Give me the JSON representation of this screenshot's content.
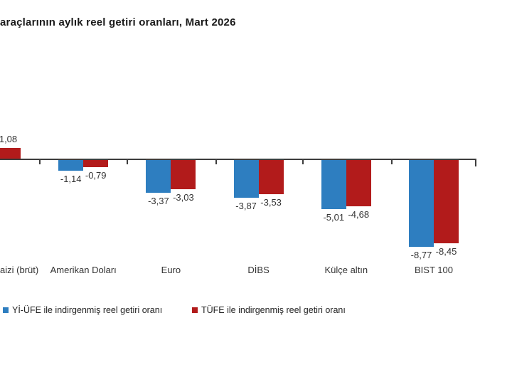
{
  "title": "araçlarının aylık reel getiri oranları, Mart 2026",
  "colors": {
    "series_blue": "#2E7EC0",
    "series_red": "#B21B1B",
    "axis": "#3d3d3d",
    "text": "#333333"
  },
  "chart_data": {
    "type": "bar",
    "title": "araçlarının aylık reel getiri oranları, Mart 2026",
    "categories": [
      "aizi (brüt)",
      "Amerikan Doları",
      "Euro",
      "DİBS",
      "Külçe altın",
      "BIST 100"
    ],
    "series": [
      {
        "name": "Yİ-ÜFE ile indirgenmiş reel getiri oranı",
        "color": "#2E7EC0",
        "values": [
          null,
          -1.14,
          -3.37,
          -3.87,
          -5.01,
          -8.77
        ]
      },
      {
        "name": "TÜFE ile indirgenmiş reel getiri oranı",
        "color": "#B21B1B",
        "values": [
          1.08,
          -0.79,
          -3.03,
          -3.53,
          -4.68,
          -8.45
        ]
      }
    ],
    "value_labels": [
      [
        null,
        "-1,14",
        "-3,37",
        "-3,87",
        "-5,01",
        "-8,77"
      ],
      [
        "1,08",
        "-0,79",
        "-3,03",
        "-3,53",
        "-4,68",
        "-8,45"
      ]
    ],
    "xlabel": "",
    "ylabel": "",
    "ylim": [
      -9.5,
      1.5
    ],
    "grid": false,
    "legend_position": "bottom",
    "note": "first category and left series bar are clipped at the left image edge"
  },
  "legend": {
    "items": [
      {
        "label": "Yİ-ÜFE ile indirgenmiş reel getiri oranı",
        "color": "#2E7EC0"
      },
      {
        "label": "TÜFE ile indirgenmiş reel getiri oranı",
        "color": "#B21B1B"
      }
    ]
  }
}
